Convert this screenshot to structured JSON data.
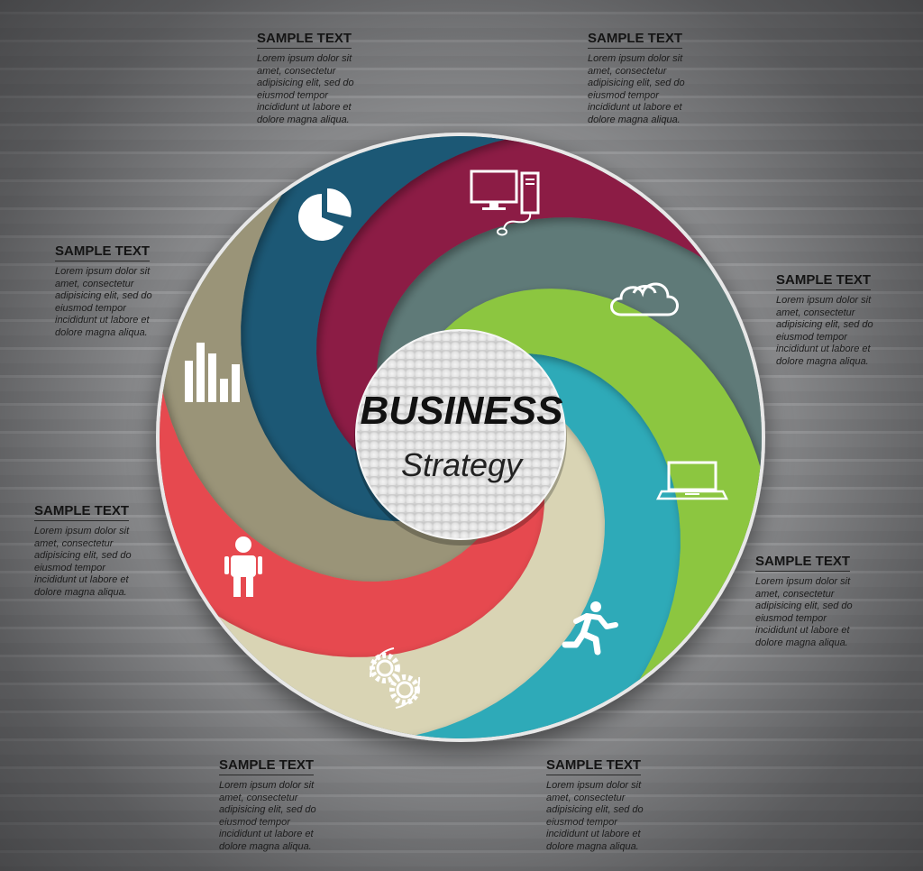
{
  "center": {
    "title": "BUSINESS",
    "subtitle": "Strategy"
  },
  "colors": {
    "green": "#8cc63f",
    "teal": "#2eaab8",
    "beige": "#d9d4b4",
    "red": "#e6494f",
    "taupe": "#9a9478",
    "navy": "#1f5874",
    "maroon": "#8c1c45",
    "slate": "#5f7a78"
  },
  "segments": [
    {
      "icon": "monitor-icon",
      "color": "green"
    },
    {
      "icon": "cloud-icon",
      "color": "teal"
    },
    {
      "icon": "laptop-icon",
      "color": "beige"
    },
    {
      "icon": "runner-icon",
      "color": "red"
    },
    {
      "icon": "gears-icon",
      "color": "taupe"
    },
    {
      "icon": "person-icon",
      "color": "navy"
    },
    {
      "icon": "bar-chart-icon",
      "color": "maroon"
    },
    {
      "icon": "pie-chart-icon",
      "color": "slate"
    }
  ],
  "labels": [
    {
      "heading": "SAMPLE TEXT",
      "body": "Lorem ipsum dolor sit\namet, consectetur\nadipisicing elit, sed do\neiusmod tempor\nincididunt ut labore et\ndolore magna aliqua."
    },
    {
      "heading": "SAMPLE TEXT",
      "body": "Lorem ipsum dolor sit\namet, consectetur\nadipisicing elit, sed do\neiusmod tempor\nincididunt ut labore et\ndolore magna aliqua."
    },
    {
      "heading": "SAMPLE TEXT",
      "body": "Lorem ipsum dolor sit\namet, consectetur\nadipisicing elit, sed do\neiusmod tempor\nincididunt ut labore et\ndolore magna aliqua."
    },
    {
      "heading": "SAMPLE TEXT",
      "body": "Lorem ipsum dolor sit\namet, consectetur\nadipisicing elit, sed do\neiusmod tempor\nincididunt ut labore et\ndolore magna aliqua."
    },
    {
      "heading": "SAMPLE TEXT",
      "body": "Lorem ipsum dolor sit\namet, consectetur\nadipisicing elit, sed do\neiusmod tempor\nincididunt ut labore et\ndolore magna aliqua."
    },
    {
      "heading": "SAMPLE TEXT",
      "body": "Lorem ipsum dolor sit\namet, consectetur\nadipisicing elit, sed do\neiusmod tempor\nincididunt ut labore et\ndolore magna aliqua."
    },
    {
      "heading": "SAMPLE TEXT",
      "body": "Lorem ipsum dolor sit\namet, consectetur\nadipisicing elit, sed do\neiusmod tempor\nincididunt ut labore et\ndolore magna aliqua."
    },
    {
      "heading": "SAMPLE TEXT",
      "body": "Lorem ipsum dolor sit\namet, consectetur\nadipisicing elit, sed do\neiusmod tempor\nincididunt ut labore et\ndolore magna aliqua."
    }
  ]
}
